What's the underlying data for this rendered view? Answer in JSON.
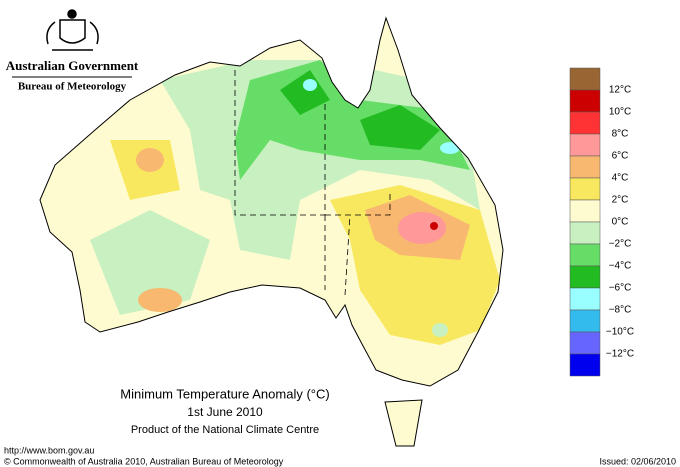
{
  "header": {
    "government": "Australian Government",
    "bureau": "Bureau of Meteorology"
  },
  "title": {
    "line1": "Minimum Temperature Anomaly (°C)",
    "line2": "1st June 2010",
    "line3": "Product of the National Climate Centre"
  },
  "legend": {
    "colors": [
      "#996633",
      "#cc0000",
      "#ff3333",
      "#ff9999",
      "#f8b870",
      "#f8e860",
      "#fffbd0",
      "#c8f0c0",
      "#66dd66",
      "#22bb22",
      "#99ffff",
      "#33bbee",
      "#6666ff",
      "#0000ee"
    ],
    "labels": [
      "12°C",
      "10°C",
      "8°C",
      "6°C",
      "4°C",
      "2°C",
      "0°C",
      "−2°C",
      "−4°C",
      "−6°C",
      "−8°C",
      "−10°C",
      "−12°C"
    ]
  },
  "footer": {
    "url": "http://www.bom.gov.au",
    "copyright": "© Commonwealth of Australia 2010, Australian Bureau of Meteorology",
    "issued": "Issued: 02/06/2010"
  }
}
